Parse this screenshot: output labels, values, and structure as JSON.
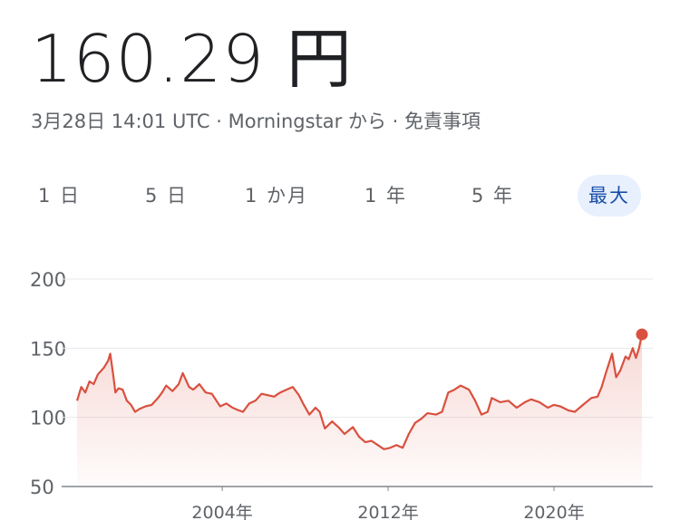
{
  "price": "160.29 円",
  "subtitle": "3月28日 14:01 UTC · Morningstar から · 免責事項",
  "ranges": [
    "1 日",
    "5 日",
    "1 か月",
    "1 年",
    "5 年",
    "最大"
  ],
  "selected_range": 5,
  "chart_data": {
    "type": "line",
    "color": "#d9503f",
    "grid": true,
    "xlim": [
      1997.0,
      2024.24
    ],
    "ylim": [
      50,
      200
    ],
    "yticks": [
      50,
      100,
      150,
      200
    ],
    "xticks": [
      {
        "value": 2004,
        "label": "2004年"
      },
      {
        "value": 2012,
        "label": "2012年"
      },
      {
        "value": 2020,
        "label": "2020年"
      }
    ],
    "x": [
      1997.0,
      1997.2,
      1997.4,
      1997.6,
      1997.8,
      1998.0,
      1998.3,
      1998.5,
      1998.6,
      1998.75,
      1998.85,
      1999.0,
      1999.2,
      1999.4,
      1999.6,
      1999.8,
      2000.0,
      2000.3,
      2000.6,
      2000.9,
      2001.1,
      2001.3,
      2001.6,
      2001.9,
      2002.1,
      2002.4,
      2002.6,
      2002.9,
      2003.2,
      2003.5,
      2003.9,
      2004.2,
      2004.5,
      2004.8,
      2005.0,
      2005.3,
      2005.6,
      2005.9,
      2006.2,
      2006.5,
      2006.8,
      2007.1,
      2007.4,
      2007.7,
      2007.9,
      2008.2,
      2008.5,
      2008.7,
      2008.95,
      2009.3,
      2009.6,
      2009.9,
      2010.3,
      2010.6,
      2010.9,
      2011.2,
      2011.5,
      2011.8,
      2012.1,
      2012.4,
      2012.7,
      2013.0,
      2013.3,
      2013.6,
      2013.9,
      2014.3,
      2014.6,
      2014.9,
      2015.2,
      2015.5,
      2015.9,
      2016.2,
      2016.5,
      2016.8,
      2017.0,
      2017.4,
      2017.8,
      2018.2,
      2018.6,
      2018.9,
      2019.3,
      2019.7,
      2020.0,
      2020.3,
      2020.7,
      2021.0,
      2021.4,
      2021.8,
      2022.1,
      2022.3,
      2022.5,
      2022.8,
      2023.0,
      2023.2,
      2023.45,
      2023.6,
      2023.8,
      2023.95,
      2024.1,
      2024.24
    ],
    "values": [
      112,
      122,
      118,
      126,
      124,
      131,
      136,
      141,
      146,
      130,
      118,
      121,
      120,
      112,
      109,
      104,
      106,
      108,
      109,
      114,
      118,
      123,
      119,
      124,
      132,
      122,
      120,
      124,
      118,
      117,
      108,
      110,
      107,
      105,
      104,
      110,
      112,
      117,
      116,
      115,
      118,
      120,
      122,
      116,
      110,
      102,
      107,
      104,
      92,
      97,
      93,
      88,
      93,
      86,
      82,
      83,
      80,
      77,
      78,
      80,
      78,
      88,
      96,
      99,
      103,
      102,
      104,
      118,
      120,
      123,
      120,
      112,
      102,
      104,
      114,
      111,
      112,
      107,
      111,
      113,
      111,
      107,
      109,
      108,
      105,
      104,
      109,
      114,
      115,
      122,
      132,
      146,
      129,
      134,
      144,
      142,
      150,
      143,
      150,
      160
    ]
  }
}
